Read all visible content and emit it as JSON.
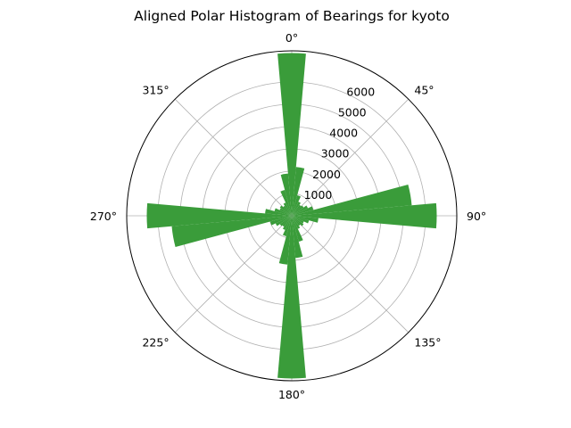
{
  "chart_data": {
    "type": "bar",
    "subtype": "polar-histogram",
    "title": "Aligned Polar Histogram of Bearings for kyoto",
    "theta_zero_location": "N",
    "theta_direction": "clockwise",
    "angle_tick_labels": [
      "0°",
      "45°",
      "90°",
      "135°",
      "180°",
      "225°",
      "270°",
      "315°"
    ],
    "radial_tick_values": [
      1000,
      2000,
      3000,
      4000,
      5000,
      6000
    ],
    "radial_tick_labels": [
      "1000",
      "2000",
      "3000",
      "4000",
      "5000",
      "6000"
    ],
    "rlim": [
      0,
      7400
    ],
    "bin_width_deg": 10,
    "grid": true,
    "bar_color": "#3a9c3a",
    "categories": [
      "0°",
      "10°",
      "20°",
      "30°",
      "40°",
      "50°",
      "60°",
      "70°",
      "80°",
      "90°",
      "100°",
      "110°",
      "120°",
      "130°",
      "140°",
      "150°",
      "160°",
      "170°",
      "180°",
      "190°",
      "200°",
      "210°",
      "220°",
      "230°",
      "240°",
      "250°",
      "260°",
      "270°",
      "280°",
      "290°",
      "300°",
      "310°",
      "320°",
      "330°",
      "340°",
      "350°"
    ],
    "values": [
      7300,
      2200,
      950,
      700,
      600,
      650,
      800,
      1000,
      5400,
      6500,
      1200,
      800,
      600,
      650,
      550,
      650,
      1200,
      1900,
      7300,
      2200,
      950,
      700,
      600,
      650,
      800,
      1000,
      5400,
      6500,
      1200,
      800,
      600,
      650,
      550,
      650,
      1200,
      1900
    ]
  }
}
